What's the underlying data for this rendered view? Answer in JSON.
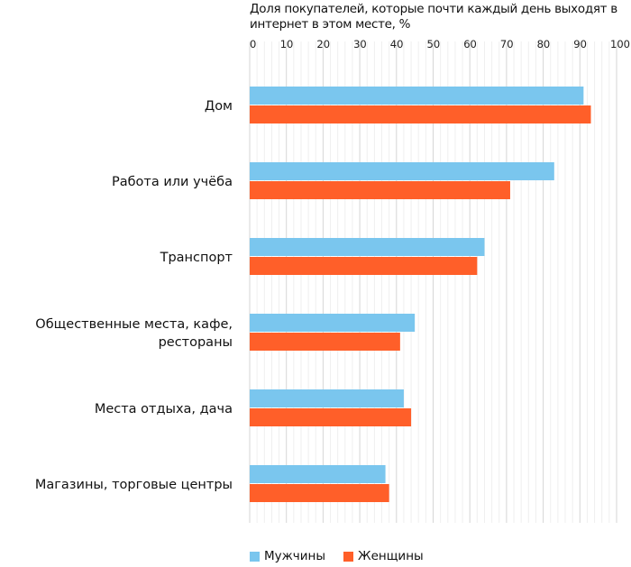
{
  "chart_data": {
    "type": "bar",
    "orientation": "horizontal",
    "title": "Доля покупателей, которые почти каждый день выходят в интернет в этом месте, %",
    "categories": [
      "Дом",
      "Работа или учёба",
      "Транспорт",
      "Общественные места, кафе, рестораны",
      "Места отдыха, дача",
      "Магазины, торговые центры"
    ],
    "category_lines": [
      [
        "Дом"
      ],
      [
        "Работа или учёба"
      ],
      [
        "Транспорт"
      ],
      [
        "Общественные места, кафе,",
        "рестораны"
      ],
      [
        "Места отдыха, дача"
      ],
      [
        "Магазины, торговые центры"
      ]
    ],
    "series": [
      {
        "name": "Мужчины",
        "color": "#7ac6ee",
        "values": [
          91,
          83,
          64,
          45,
          42,
          37
        ]
      },
      {
        "name": "Женщины",
        "color": "#ff5f29",
        "values": [
          93,
          71,
          62,
          41,
          44,
          38
        ]
      }
    ],
    "xlim": [
      0,
      100
    ],
    "xticks": [
      0,
      10,
      20,
      30,
      40,
      50,
      60,
      70,
      80,
      90,
      100
    ],
    "grid": true,
    "legend": "bottom-left"
  }
}
